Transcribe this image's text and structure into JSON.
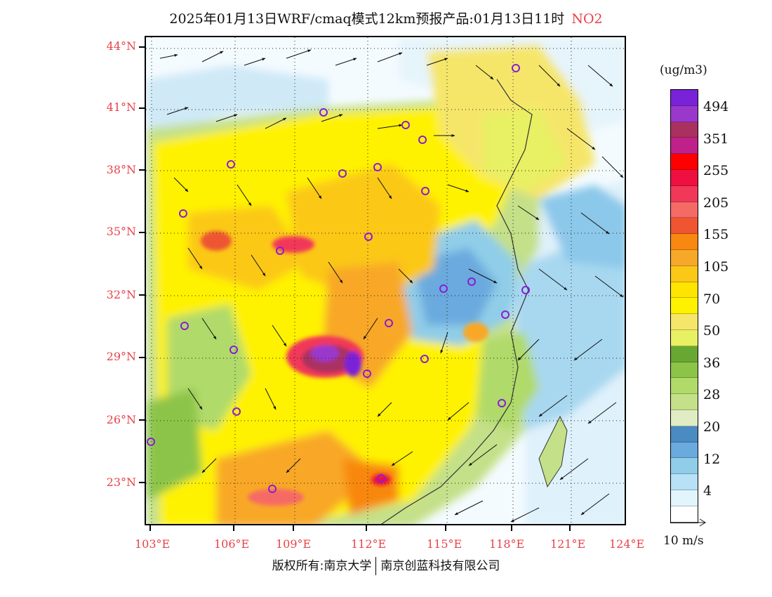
{
  "title": {
    "main": "2025年01月13日WRF/cmaq模式12km预报产品:01月13日11时",
    "species": "NO2"
  },
  "colors": {
    "species_title": "#e8424a",
    "axis_labels": "#e8424a"
  },
  "lat_labels": [
    "44°N",
    "41°N",
    "38°N",
    "35°N",
    "32°N",
    "29°N",
    "26°N",
    "23°N"
  ],
  "lon_labels": [
    "103°E",
    "106°E",
    "109°E",
    "112°E",
    "115°E",
    "118°E",
    "121°E",
    "124°E"
  ],
  "colorbar": {
    "unit": "(ug/m3)",
    "colors": [
      "#7a22d8",
      "#9a38cc",
      "#aa3060",
      "#c0208a",
      "#ff0000",
      "#ee1040",
      "#f23858",
      "#f66a66",
      "#ee5530",
      "#f88810",
      "#f8a828",
      "#fbc818",
      "#ffe400",
      "#fff200",
      "#f5e66a",
      "#e8f064",
      "#68a832",
      "#8cc448",
      "#b0da6a",
      "#c4e088",
      "#e0ecc4",
      "#4a8cc2",
      "#6aaade",
      "#90cde8",
      "#b8e0f6",
      "#e2f4fc",
      "#ffffff"
    ],
    "labels": [
      "494",
      "351",
      "255",
      "205",
      "155",
      "105",
      "70",
      "50",
      "36",
      "28",
      "20",
      "12",
      "4"
    ]
  },
  "vector_legend": "10 m/s",
  "footer": {
    "left": "版权所有:南京大学",
    "right": "南京创蓝科技有限公司"
  },
  "map_legend_icon": "city-marker-icon"
}
